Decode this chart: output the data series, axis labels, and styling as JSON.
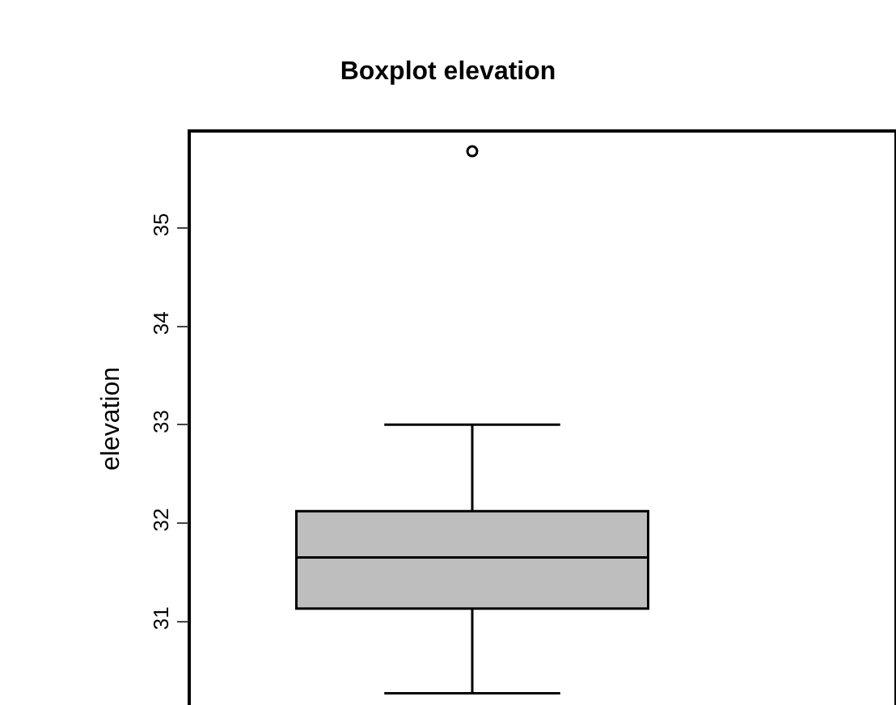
{
  "chart_data": {
    "type": "box",
    "title": "Boxplot elevation",
    "ylabel": "elevation",
    "categories": [
      null
    ],
    "boxes": [
      {
        "low": 30.27,
        "q1": 31.13,
        "median": 31.65,
        "q3": 32.12,
        "high": 33.0,
        "outliers": [
          35.78
        ]
      }
    ],
    "color": "#bebebe",
    "ylim": [
      30.15,
      35.97
    ],
    "yticks": [
      31,
      32,
      33,
      34,
      35
    ],
    "tick_labels": "y"
  }
}
